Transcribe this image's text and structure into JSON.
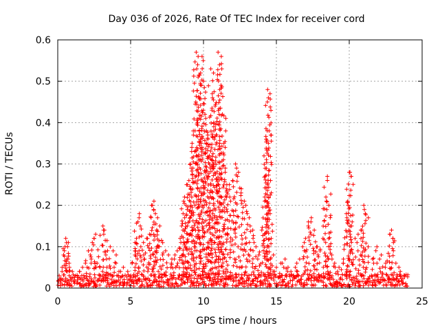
{
  "chart_data": {
    "type": "scatter",
    "title": "Day 036 of 2026, Rate Of TEC Index for receiver cord",
    "xlabel": "GPS time / hours",
    "ylabel": "ROTI / TECUs",
    "xlim": [
      0,
      25
    ],
    "ylim": [
      0,
      0.6
    ],
    "xticks": [
      0,
      5,
      10,
      15,
      20,
      25
    ],
    "yticks": [
      0,
      0.1,
      0.2,
      0.3,
      0.4,
      0.5,
      0.6
    ],
    "xtick_labels": [
      "0",
      "5",
      "10",
      "15",
      "20",
      "25"
    ],
    "ytick_labels": [
      "0",
      "0.1",
      "0.2",
      "0.3",
      "0.4",
      "0.5",
      "0.6"
    ],
    "grid": true,
    "marker": "+",
    "color": "#ff0000",
    "background_band": {
      "x_range": [
        0,
        24
      ],
      "y_range": [
        0,
        0.03
      ]
    },
    "points": [
      [
        0.1,
        0.03
      ],
      [
        0.3,
        0.05
      ],
      [
        0.4,
        0.08
      ],
      [
        0.5,
        0.1
      ],
      [
        0.55,
        0.12
      ],
      [
        0.6,
        0.11
      ],
      [
        0.7,
        0.07
      ],
      [
        0.8,
        0.05
      ],
      [
        1.0,
        0.04
      ],
      [
        1.2,
        0.03
      ],
      [
        1.5,
        0.04
      ],
      [
        1.7,
        0.05
      ],
      [
        1.9,
        0.06
      ],
      [
        2.1,
        0.09
      ],
      [
        2.3,
        0.07
      ],
      [
        2.5,
        0.12
      ],
      [
        2.6,
        0.13
      ],
      [
        2.7,
        0.06
      ],
      [
        2.9,
        0.05
      ],
      [
        3.1,
        0.15
      ],
      [
        3.2,
        0.14
      ],
      [
        3.3,
        0.08
      ],
      [
        3.6,
        0.1
      ],
      [
        3.8,
        0.09
      ],
      [
        4.0,
        0.06
      ],
      [
        4.2,
        0.04
      ],
      [
        4.5,
        0.05
      ],
      [
        4.8,
        0.04
      ],
      [
        5.1,
        0.06
      ],
      [
        5.3,
        0.09
      ],
      [
        5.4,
        0.12
      ],
      [
        5.5,
        0.16
      ],
      [
        5.6,
        0.18
      ],
      [
        5.7,
        0.1
      ],
      [
        5.9,
        0.08
      ],
      [
        6.1,
        0.12
      ],
      [
        6.3,
        0.13
      ],
      [
        6.5,
        0.2
      ],
      [
        6.6,
        0.21
      ],
      [
        6.7,
        0.18
      ],
      [
        6.8,
        0.14
      ],
      [
        6.9,
        0.1
      ],
      [
        7.0,
        0.15
      ],
      [
        7.2,
        0.11
      ],
      [
        7.4,
        0.09
      ],
      [
        7.6,
        0.08
      ],
      [
        7.8,
        0.06
      ],
      [
        8.0,
        0.07
      ],
      [
        8.2,
        0.09
      ],
      [
        8.4,
        0.12
      ],
      [
        8.5,
        0.15
      ],
      [
        8.6,
        0.18
      ],
      [
        8.7,
        0.22
      ],
      [
        8.8,
        0.2
      ],
      [
        8.9,
        0.25
      ],
      [
        9.0,
        0.26
      ],
      [
        9.1,
        0.3
      ],
      [
        9.2,
        0.34
      ],
      [
        9.3,
        0.38
      ],
      [
        9.4,
        0.33
      ],
      [
        9.5,
        0.57
      ],
      [
        9.6,
        0.54
      ],
      [
        9.7,
        0.46
      ],
      [
        9.8,
        0.52
      ],
      [
        9.9,
        0.56
      ],
      [
        10.0,
        0.5
      ],
      [
        10.1,
        0.42
      ],
      [
        10.2,
        0.38
      ],
      [
        10.3,
        0.36
      ],
      [
        10.4,
        0.32
      ],
      [
        10.5,
        0.53
      ],
      [
        10.6,
        0.47
      ],
      [
        10.7,
        0.4
      ],
      [
        10.8,
        0.44
      ],
      [
        10.9,
        0.37
      ],
      [
        11.0,
        0.57
      ],
      [
        11.1,
        0.54
      ],
      [
        11.2,
        0.49
      ],
      [
        11.3,
        0.42
      ],
      [
        11.4,
        0.35
      ],
      [
        11.5,
        0.29
      ],
      [
        11.6,
        0.25
      ],
      [
        11.8,
        0.22
      ],
      [
        12.0,
        0.26
      ],
      [
        12.2,
        0.3
      ],
      [
        12.4,
        0.28
      ],
      [
        12.6,
        0.24
      ],
      [
        12.8,
        0.21
      ],
      [
        13.0,
        0.18
      ],
      [
        13.2,
        0.15
      ],
      [
        13.4,
        0.12
      ],
      [
        13.6,
        0.1
      ],
      [
        13.8,
        0.08
      ],
      [
        14.0,
        0.14
      ],
      [
        14.2,
        0.22
      ],
      [
        14.3,
        0.36
      ],
      [
        14.4,
        0.48
      ],
      [
        14.45,
        0.46
      ],
      [
        14.5,
        0.38
      ],
      [
        14.6,
        0.26
      ],
      [
        14.8,
        0.08
      ],
      [
        15.0,
        0.05
      ],
      [
        15.3,
        0.06
      ],
      [
        15.6,
        0.07
      ],
      [
        15.8,
        0.05
      ],
      [
        16.0,
        0.04
      ],
      [
        16.3,
        0.05
      ],
      [
        16.6,
        0.07
      ],
      [
        16.8,
        0.1
      ],
      [
        17.0,
        0.12
      ],
      [
        17.2,
        0.16
      ],
      [
        17.4,
        0.17
      ],
      [
        17.6,
        0.14
      ],
      [
        17.8,
        0.1
      ],
      [
        18.0,
        0.09
      ],
      [
        18.2,
        0.12
      ],
      [
        18.4,
        0.22
      ],
      [
        18.5,
        0.27
      ],
      [
        18.6,
        0.2
      ],
      [
        18.8,
        0.08
      ],
      [
        19.0,
        0.06
      ],
      [
        19.3,
        0.05
      ],
      [
        19.6,
        0.07
      ],
      [
        19.8,
        0.18
      ],
      [
        19.9,
        0.21
      ],
      [
        20.0,
        0.28
      ],
      [
        20.05,
        0.28
      ],
      [
        20.2,
        0.16
      ],
      [
        20.4,
        0.12
      ],
      [
        20.6,
        0.09
      ],
      [
        20.8,
        0.14
      ],
      [
        21.0,
        0.2
      ],
      [
        21.1,
        0.18
      ],
      [
        21.3,
        0.1
      ],
      [
        21.6,
        0.07
      ],
      [
        21.9,
        0.1
      ],
      [
        22.2,
        0.08
      ],
      [
        22.5,
        0.06
      ],
      [
        22.8,
        0.13
      ],
      [
        22.9,
        0.14
      ],
      [
        23.0,
        0.12
      ],
      [
        23.2,
        0.06
      ],
      [
        23.5,
        0.04
      ],
      [
        23.8,
        0.03
      ]
    ]
  }
}
